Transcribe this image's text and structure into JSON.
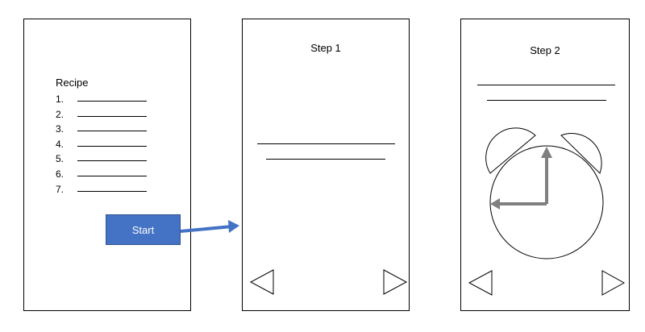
{
  "screen_recipe": {
    "title": "Recipe",
    "items": [
      "1.",
      "2.",
      "3.",
      "4.",
      "5.",
      "6.",
      "7."
    ],
    "start_button": "Start"
  },
  "screen_step1": {
    "title": "Step 1"
  },
  "screen_step2": {
    "title": "Step 2"
  },
  "colors": {
    "button_fill": "#4472c4",
    "arrow": "#4472c4",
    "clock_hands": "#7f7f7f"
  }
}
